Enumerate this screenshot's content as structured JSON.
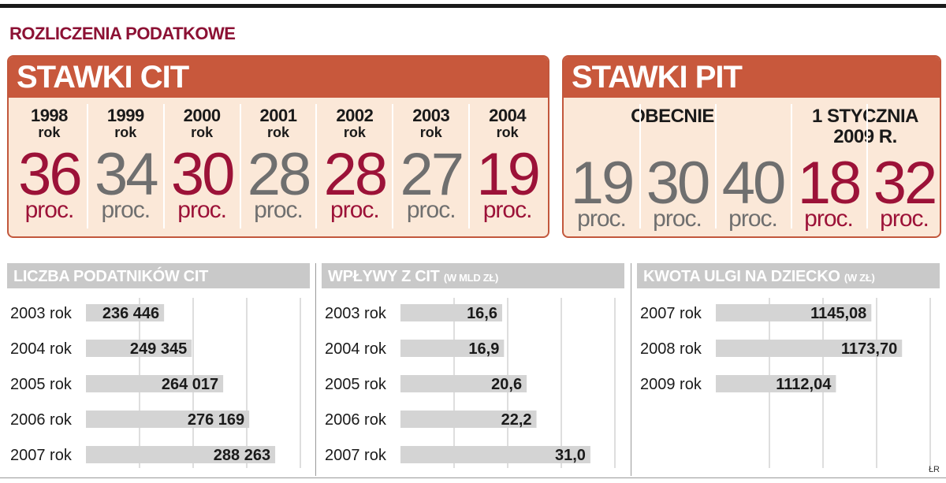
{
  "section_title": "ROZLICZENIA PODATKOWE",
  "cit": {
    "title": "STAWKI CIT",
    "year_suffix": "rok",
    "unit": "proc.",
    "items": [
      {
        "year": "1998",
        "rate": "36",
        "color": "#9c1238"
      },
      {
        "year": "1999",
        "rate": "34",
        "color": "#6f6f6f"
      },
      {
        "year": "2000",
        "rate": "30",
        "color": "#9c1238"
      },
      {
        "year": "2001",
        "rate": "28",
        "color": "#6f6f6f"
      },
      {
        "year": "2002",
        "rate": "28",
        "color": "#9c1238"
      },
      {
        "year": "2003",
        "rate": "27",
        "color": "#6f6f6f"
      },
      {
        "year": "2004",
        "rate": "19",
        "color": "#9c1238"
      }
    ]
  },
  "pit": {
    "title": "STAWKI PIT",
    "unit": "proc.",
    "current_label": "OBECNIE",
    "future_label_1": "1 STYCZNIA",
    "future_label_2": "2009 R.",
    "current_rates": [
      "19",
      "30",
      "40"
    ],
    "future_rates": [
      "18",
      "32"
    ]
  },
  "chart_data": [
    {
      "type": "bar",
      "title": "LICZBA PODATNIKÓW CIT",
      "unit_note": "",
      "categories": [
        "2003 rok",
        "2004 rok",
        "2005 rok",
        "2006 rok",
        "2007 rok"
      ],
      "values": [
        236446,
        249345,
        264017,
        276169,
        288263
      ],
      "labels": [
        "236 446",
        "249 345",
        "264 017",
        "276 169",
        "288 263"
      ],
      "xlim": [
        200000,
        300000
      ],
      "grid": true
    },
    {
      "type": "bar",
      "title": "WPŁYWY Z CIT",
      "unit_note": "(W MLD ZŁ)",
      "categories": [
        "2003 rok",
        "2004 rok",
        "2005 rok",
        "2006 rok",
        "2007 rok"
      ],
      "values": [
        16.6,
        16.9,
        20.6,
        22.2,
        31.0
      ],
      "labels": [
        "16,6",
        "16,9",
        "20,6",
        "22,2",
        "31,0"
      ],
      "xlim": [
        0,
        35
      ],
      "grid": true
    },
    {
      "type": "bar",
      "title": "KWOTA ULGI NA DZIECKO",
      "unit_note": "(W ZŁ)",
      "categories": [
        "2007 rok",
        "2008 rok",
        "2009 rok"
      ],
      "values": [
        1145.08,
        1173.7,
        1112.04
      ],
      "labels": [
        "1145,08",
        "1173,70",
        "1112,04"
      ],
      "xlim": [
        1000,
        1200
      ],
      "grid": true
    }
  ],
  "credit": "ŁR",
  "colors": {
    "accent_red": "#9c1238",
    "header_orange": "#c8583c",
    "panel_bg": "#fbe8d8",
    "bar_gray": "#d4d4d4"
  }
}
